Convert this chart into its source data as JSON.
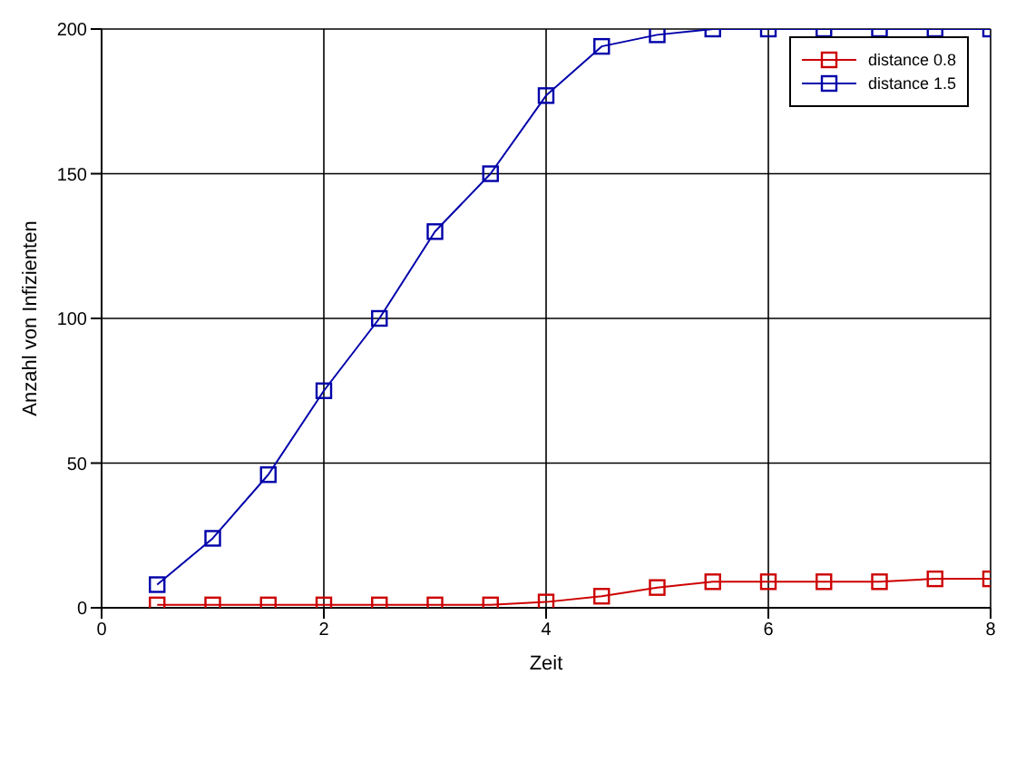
{
  "chart_data": {
    "type": "line",
    "xlabel": "Zeit",
    "ylabel": "Anzahl von Infizienten",
    "x": [
      0.5,
      1,
      1.5,
      2,
      2.5,
      3,
      3.5,
      4,
      4.5,
      5,
      5.5,
      6,
      6.5,
      7,
      7.5,
      8
    ],
    "series": [
      {
        "name": "distance 0.8",
        "color": "#cc0000",
        "values": [
          1,
          1,
          1,
          1,
          1,
          1,
          1,
          2,
          4,
          7,
          9,
          9,
          9,
          9,
          10,
          10
        ]
      },
      {
        "name": "distance 1.5",
        "color": "#0000aa",
        "values": [
          8,
          24,
          46,
          75,
          100,
          130,
          150,
          177,
          194,
          198,
          200,
          200,
          200,
          200,
          200,
          200
        ]
      }
    ],
    "xlim": [
      0,
      8
    ],
    "xticks": [
      0,
      2,
      4,
      6,
      8
    ],
    "ylim": [
      0,
      200
    ],
    "yticks": [
      0,
      50,
      100,
      150,
      200
    ],
    "grid": true,
    "legend": "top right",
    "marker": "square",
    "line_style": "solid"
  }
}
